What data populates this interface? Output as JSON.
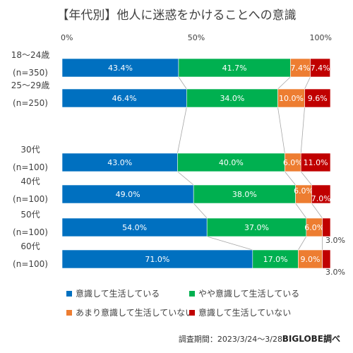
{
  "chart_data": {
    "type": "bar",
    "stacked": true,
    "orientation": "horizontal",
    "title": "【年代別】他人に迷惑をかけることへの意識",
    "x_ticks": [
      "0%",
      "50%",
      "100%"
    ],
    "xlim": [
      0,
      100
    ],
    "grid": false,
    "legend_position": "bottom",
    "categories": [
      {
        "label": "18〜24歳",
        "n": "(n=350)"
      },
      {
        "label": "25〜29歳",
        "n": "(n=250)"
      },
      {
        "label": "30代",
        "n": "(n=100)"
      },
      {
        "label": "40代",
        "n": "(n=100)"
      },
      {
        "label": "50代",
        "n": "(n=100)"
      },
      {
        "label": "60代",
        "n": "(n=100)"
      }
    ],
    "series": [
      {
        "name": "意識して生活している",
        "color": "#0070C0",
        "values": [
          43.4,
          46.4,
          43.0,
          49.0,
          54.0,
          71.0
        ],
        "labels": [
          "43.4%",
          "46.4%",
          "43.0%",
          "49.0%",
          "54.0%",
          "71.0%"
        ]
      },
      {
        "name": "やや意識して生活している",
        "color": "#00B050",
        "values": [
          41.7,
          34.0,
          40.0,
          38.0,
          37.0,
          17.0
        ],
        "labels": [
          "41.7%",
          "34.0%",
          "40.0%",
          "38.0%",
          "37.0%",
          "17.0%"
        ]
      },
      {
        "name": "あまり意識して生活していない",
        "color": "#ED7D31",
        "values": [
          7.4,
          10.0,
          6.0,
          6.0,
          6.0,
          9.0
        ],
        "labels": [
          "7.4%",
          "10.0%",
          "6.0%",
          "6.0%",
          "6.0%",
          "9.0%"
        ]
      },
      {
        "name": "意識して生活していない",
        "color": "#C00000",
        "values": [
          7.4,
          9.6,
          11.0,
          7.0,
          3.0,
          3.0
        ],
        "labels": [
          "7.4%",
          "9.6%",
          "11.0%",
          "7.0%",
          "3.0%",
          "3.0%"
        ]
      }
    ]
  },
  "footer": {
    "period": "調査期間：2023/3/24〜3/28",
    "brand": "BIGLOBE調べ"
  }
}
